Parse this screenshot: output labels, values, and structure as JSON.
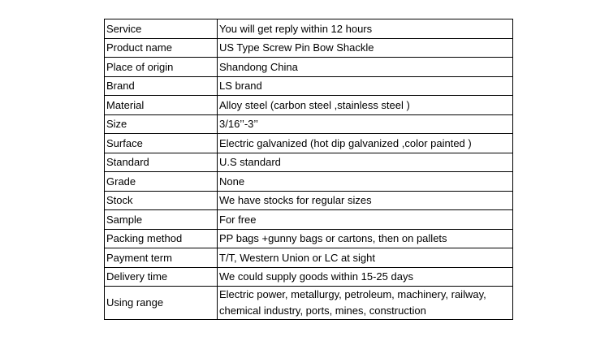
{
  "spec_table": {
    "rows": [
      {
        "label": "Service",
        "value": "You will get reply within 12 hours"
      },
      {
        "label": "Product name",
        "value": "US Type Screw Pin Bow Shackle"
      },
      {
        "label": "Place of origin",
        "value": "Shandong China"
      },
      {
        "label": "Brand",
        "value": "LS brand"
      },
      {
        "label": "Material",
        "value": "Alloy steel (carbon steel ,stainless steel )"
      },
      {
        "label": "Size",
        "value": "3/16’’-3’’"
      },
      {
        "label": "Surface",
        "value": "Electric galvanized (hot dip galvanized ,color painted )"
      },
      {
        "label": "Standard",
        "value": "U.S standard"
      },
      {
        "label": "Grade",
        "value": "None"
      },
      {
        "label": "Stock",
        "value": "We have stocks for regular sizes"
      },
      {
        "label": "Sample",
        "value": "For free"
      },
      {
        "label": "Packing method",
        "value": "PP bags +gunny bags or cartons, then on pallets"
      },
      {
        "label": "Payment term",
        "value": "T/T, Western Union or LC at sight"
      },
      {
        "label": "Delivery time",
        "value": "We could supply goods within 15-25 days"
      },
      {
        "label": "Using range",
        "value": "Electric power, metallurgy, petroleum, machinery, railway, chemical industry, ports, mines, construction"
      }
    ]
  }
}
